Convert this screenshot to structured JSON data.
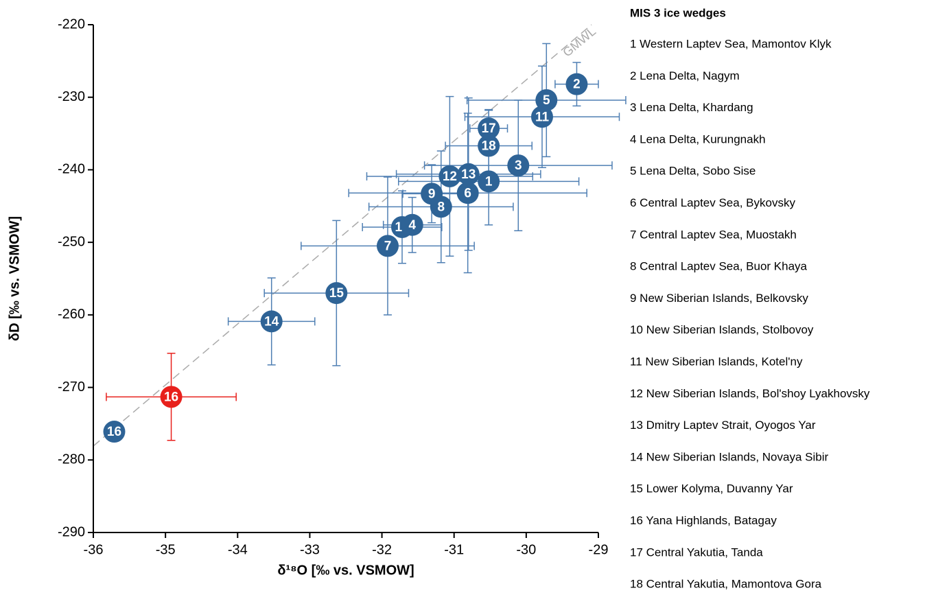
{
  "chart_data": {
    "type": "scatter",
    "xlabel": "δ¹⁸O [‰ vs. VSMOW]",
    "ylabel": "δD [‰ vs. VSMOW]",
    "xlim": [
      -36,
      -29
    ],
    "xticks": [
      -36,
      -35,
      -34,
      -33,
      -32,
      -31,
      -30,
      -29
    ],
    "ylim": [
      -290,
      -220
    ],
    "yticks": [
      -220,
      -230,
      -240,
      -250,
      -260,
      -270,
      -280,
      -290
    ],
    "labels": [
      "2",
      "5",
      "11",
      "17",
      "18",
      "3",
      "1",
      "12",
      "13",
      "9",
      "6",
      "8",
      "10",
      "4",
      "7",
      "15",
      "14",
      "16",
      "16"
    ],
    "x": [
      -29.3,
      -29.72,
      -29.78,
      -30.52,
      -30.52,
      -30.11,
      -30.52,
      -31.06,
      -30.8,
      -31.31,
      -30.81,
      -31.18,
      -31.72,
      -31.58,
      -31.92,
      -32.63,
      -33.53,
      -34.92,
      -35.71
    ],
    "values": [
      -228.2,
      -230.4,
      -232.7,
      -234.3,
      -236.7,
      -239.4,
      -241.6,
      -240.9,
      -240.6,
      -243.3,
      -243.2,
      -245.1,
      -247.9,
      -247.6,
      -250.5,
      -257.0,
      -260.9,
      -271.3,
      -276.1
    ],
    "x_err": [
      0.3,
      1.1,
      1.07,
      0.26,
      0.6,
      1.3,
      1.25,
      1.15,
      1.0,
      0.4,
      1.65,
      1.0,
      0.55,
      0.4,
      1.2,
      1.0,
      0.6,
      0.9,
      null
    ],
    "y_err": [
      3.0,
      7.8,
      7.0,
      2.5,
      5.0,
      9.0,
      6.0,
      11.0,
      10.5,
      4.0,
      11.0,
      7.7,
      5.0,
      3.8,
      9.5,
      10.0,
      6.0,
      6.0,
      null
    ],
    "colors": [
      "#2e6396",
      "#2e6396",
      "#2e6396",
      "#2e6396",
      "#2e6396",
      "#2e6396",
      "#2e6396",
      "#2e6396",
      "#2e6396",
      "#2e6396",
      "#2e6396",
      "#2e6396",
      "#2e6396",
      "#2e6396",
      "#2e6396",
      "#2e6396",
      "#2e6396",
      "#e8201c",
      "#2e6396"
    ],
    "error_colors": [
      "#4f7fb3",
      "#4f7fb3",
      "#4f7fb3",
      "#4f7fb3",
      "#4f7fb3",
      "#4f7fb3",
      "#4f7fb3",
      "#4f7fb3",
      "#4f7fb3",
      "#4f7fb3",
      "#4f7fb3",
      "#4f7fb3",
      "#4f7fb3",
      "#4f7fb3",
      "#4f7fb3",
      "#4f7fb3",
      "#4f7fb3",
      "#e8201c",
      "#4f7fb3"
    ],
    "reference_line_label": "GMWL",
    "legend_title": "MIS 3 ice wedges",
    "legend": [
      "1 Western Laptev Sea, Mamontov Klyk",
      "2 Lena Delta, Nagym",
      "3 Lena Delta, Khardang",
      "4 Lena Delta, Kurungnakh",
      "5 Lena Delta, Sobo Sise",
      "6 Central Laptev Sea, Bykovsky",
      "7 Central Laptev Sea, Muostakh",
      "8 Central Laptev Sea, Buor Khaya",
      "9 New Siberian Islands, Belkovsky",
      "10 New Siberian Islands, Stolbovoy",
      "11 New Siberian Islands, Kotel'ny",
      "12 New Siberian Islands, Bol'shoy Lyakhovsky",
      "13 Dmitry Laptev Strait, Oyogos Yar",
      "14 New Siberian Islands, Novaya Sibir",
      "15 Lower Kolyma, Duvanny Yar",
      "16 Yana Highlands, Batagay",
      "17 Central Yakutia, Tanda",
      "18 Central Yakutia, Mamontova Gora"
    ]
  }
}
